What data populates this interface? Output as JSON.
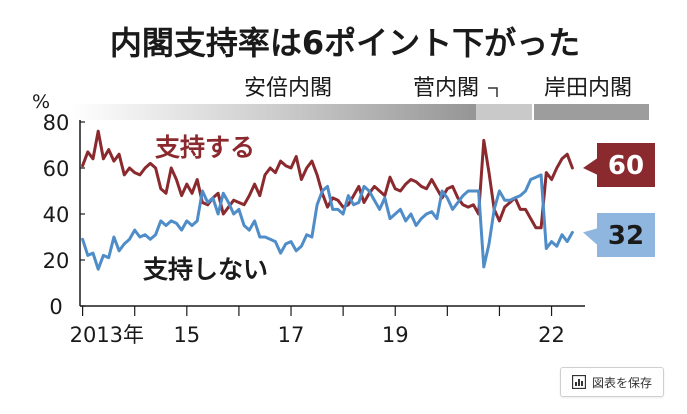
{
  "chart_data": {
    "type": "line",
    "title": "内閣支持率は6ポイント下がった",
    "ylabel": "%",
    "ylim": [
      0,
      80
    ],
    "yticks": [
      "0",
      "20",
      "40",
      "60",
      "80"
    ],
    "xticks": [
      "2013年",
      "15",
      "17",
      "19",
      "22"
    ],
    "eras": [
      {
        "label": "安倍内閣",
        "start": 2012.95,
        "end": 2020.7
      },
      {
        "label": "菅内閣",
        "start": 2020.7,
        "end": 2021.75
      },
      {
        "label": "岸田内閣",
        "start": 2021.75,
        "end": 2022.45
      }
    ],
    "grid": false,
    "series": [
      {
        "name": "支持する",
        "end_label": "60",
        "color": "#8b2a2e",
        "x": [
          2013.0,
          2013.1,
          2013.2,
          2013.3,
          2013.4,
          2013.5,
          2013.6,
          2013.7,
          2013.8,
          2013.9,
          2014.0,
          2014.1,
          2014.2,
          2014.3,
          2014.4,
          2014.5,
          2014.6,
          2014.7,
          2014.8,
          2014.9,
          2015.0,
          2015.1,
          2015.2,
          2015.3,
          2015.4,
          2015.5,
          2015.6,
          2015.7,
          2015.8,
          2015.9,
          2016.0,
          2016.1,
          2016.2,
          2016.3,
          2016.4,
          2016.5,
          2016.6,
          2016.7,
          2016.8,
          2016.9,
          2017.0,
          2017.1,
          2017.2,
          2017.3,
          2017.4,
          2017.5,
          2017.6,
          2017.7,
          2017.8,
          2017.9,
          2018.0,
          2018.1,
          2018.2,
          2018.3,
          2018.4,
          2018.5,
          2018.6,
          2018.7,
          2018.8,
          2018.9,
          2019.0,
          2019.1,
          2019.2,
          2019.3,
          2019.4,
          2019.5,
          2019.6,
          2019.7,
          2019.8,
          2019.9,
          2020.0,
          2020.1,
          2020.2,
          2020.3,
          2020.4,
          2020.5,
          2020.6,
          2020.7,
          2020.8,
          2020.9,
          2021.0,
          2021.1,
          2021.2,
          2021.3,
          2021.4,
          2021.5,
          2021.6,
          2021.7,
          2021.8,
          2021.9,
          2022.0,
          2022.1,
          2022.2,
          2022.3,
          2022.4
        ],
        "values": [
          61,
          67,
          64,
          76,
          64,
          68,
          63,
          66,
          57,
          60,
          58,
          57,
          60,
          62,
          60,
          51,
          49,
          60,
          55,
          48,
          53,
          49,
          55,
          45,
          44,
          47,
          49,
          40,
          43,
          46,
          45,
          44,
          48,
          53,
          48,
          57,
          60,
          58,
          63,
          61,
          60,
          65,
          55,
          60,
          63,
          57,
          49,
          43,
          47,
          46,
          43,
          44,
          48,
          52,
          45,
          49,
          52,
          50,
          48,
          56,
          51,
          50,
          53,
          55,
          54,
          52,
          51,
          55,
          51,
          47,
          51,
          52,
          47,
          44,
          43,
          44,
          40,
          72,
          58,
          42,
          37,
          43,
          45,
          47,
          42,
          42,
          38,
          34,
          34,
          58,
          55,
          60,
          64,
          66,
          60
        ]
      },
      {
        "name": "支持しない",
        "end_label": "32",
        "color": "#4f8dc9",
        "x": [
          2013.0,
          2013.1,
          2013.2,
          2013.3,
          2013.4,
          2013.5,
          2013.6,
          2013.7,
          2013.8,
          2013.9,
          2014.0,
          2014.1,
          2014.2,
          2014.3,
          2014.4,
          2014.5,
          2014.6,
          2014.7,
          2014.8,
          2014.9,
          2015.0,
          2015.1,
          2015.2,
          2015.3,
          2015.4,
          2015.5,
          2015.6,
          2015.7,
          2015.8,
          2015.9,
          2016.0,
          2016.1,
          2016.2,
          2016.3,
          2016.4,
          2016.5,
          2016.6,
          2016.7,
          2016.8,
          2016.9,
          2017.0,
          2017.1,
          2017.2,
          2017.3,
          2017.4,
          2017.5,
          2017.6,
          2017.7,
          2017.8,
          2017.9,
          2018.0,
          2018.1,
          2018.2,
          2018.3,
          2018.4,
          2018.5,
          2018.6,
          2018.7,
          2018.8,
          2018.9,
          2019.0,
          2019.1,
          2019.2,
          2019.3,
          2019.4,
          2019.5,
          2019.6,
          2019.7,
          2019.8,
          2019.9,
          2020.0,
          2020.1,
          2020.2,
          2020.3,
          2020.4,
          2020.5,
          2020.6,
          2020.7,
          2020.8,
          2020.9,
          2021.0,
          2021.1,
          2021.2,
          2021.3,
          2021.4,
          2021.5,
          2021.6,
          2021.7,
          2021.8,
          2021.9,
          2022.0,
          2022.1,
          2022.2,
          2022.3,
          2022.4
        ],
        "values": [
          29,
          22,
          23,
          16,
          22,
          21,
          30,
          24,
          27,
          29,
          33,
          30,
          31,
          29,
          31,
          37,
          35,
          37,
          36,
          33,
          37,
          35,
          37,
          50,
          45,
          47,
          40,
          49,
          45,
          40,
          42,
          35,
          33,
          37,
          30,
          30,
          29,
          28,
          23,
          27,
          28,
          24,
          26,
          31,
          30,
          44,
          50,
          52,
          42,
          42,
          40,
          48,
          44,
          45,
          52,
          50,
          46,
          42,
          47,
          38,
          40,
          42,
          37,
          40,
          35,
          38,
          40,
          41,
          38,
          50,
          47,
          42,
          45,
          48,
          50,
          50,
          50,
          17,
          27,
          42,
          50,
          46,
          46,
          47,
          48,
          50,
          55,
          56,
          57,
          25,
          28,
          26,
          31,
          28,
          32
        ]
      }
    ]
  },
  "toolbar": {
    "save_label": "図表を保存"
  }
}
